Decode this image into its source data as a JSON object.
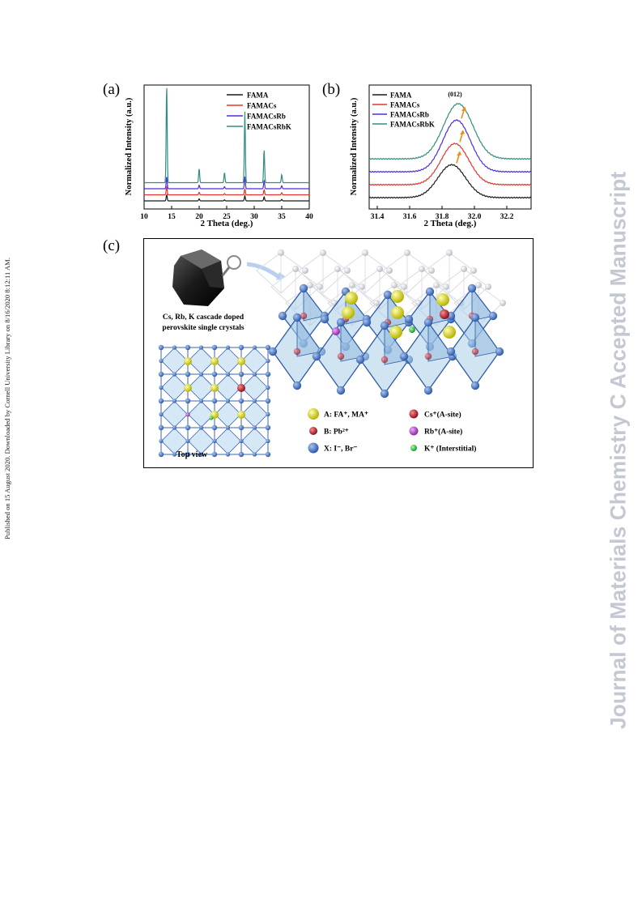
{
  "watermark": "Journal of Materials Chemistry C Accepted Manuscript",
  "side_note": "Published on 15 August 2020. Downloaded by Cornell University Library on 8/16/2020 8:12:11 AM.",
  "panels": {
    "a": "(a)",
    "b": "(b)",
    "c": "(c)"
  },
  "colors": {
    "FAMA": "#1a1a1a",
    "FAMACs": "#e8332e",
    "FAMACsRb": "#4a2ee0",
    "FAMACsRbK": "#2f8f7f"
  },
  "chart_data": [
    {
      "type": "line",
      "xlabel": "2 Theta (deg.)",
      "ylabel": "Normalized Intensity (a.u.)",
      "xlim": [
        10,
        40
      ],
      "xticks": [
        "10",
        "15",
        "20",
        "25",
        "30",
        "35",
        "40"
      ],
      "legend": "top-right",
      "peaks": [
        14.1,
        20.0,
        24.6,
        28.3,
        31.8,
        35.0
      ],
      "series": [
        {
          "name": "FAMA",
          "offset": 0,
          "heights": [
            0.06,
            0.02,
            0.01,
            0.05,
            0.04,
            0.015
          ]
        },
        {
          "name": "FAMACs",
          "offset": 0.06,
          "heights": [
            0.08,
            0.025,
            0.012,
            0.06,
            0.05,
            0.02
          ]
        },
        {
          "name": "FAMACsRb",
          "offset": 0.12,
          "heights": [
            0.12,
            0.035,
            0.02,
            0.12,
            0.08,
            0.03
          ]
        },
        {
          "name": "FAMACsRbK",
          "offset": 0.18,
          "heights": [
            0.97,
            0.14,
            0.1,
            0.7,
            0.33,
            0.08
          ]
        }
      ]
    },
    {
      "type": "line",
      "xlabel": "2 Theta (deg.)",
      "ylabel": "Normalized Intensity (a.u.)",
      "xlim": [
        31.35,
        32.35
      ],
      "xticks": [
        "31.4",
        "31.6",
        "31.8",
        "32.0",
        "32.2"
      ],
      "annotation": "(012)",
      "legend": "top-left",
      "series": [
        {
          "name": "FAMA",
          "offset": 0.0,
          "center": 31.86,
          "height": 0.28,
          "width": 0.085
        },
        {
          "name": "FAMACs",
          "offset": 0.11,
          "center": 31.88,
          "height": 0.35,
          "width": 0.085
        },
        {
          "name": "FAMACsRb",
          "offset": 0.22,
          "center": 31.89,
          "height": 0.44,
          "width": 0.085
        },
        {
          "name": "FAMACsRbK",
          "offset": 0.33,
          "center": 31.9,
          "height": 0.47,
          "width": 0.09
        }
      ]
    }
  ],
  "crystal_caption": [
    "Cs, Rb, K cascade doped",
    "perovskite single crystals"
  ],
  "top_view_label": "Top view",
  "legend_c": [
    {
      "label": "A: FA⁺, MA⁺",
      "color": "#d6d62a"
    },
    {
      "label": "Cs⁺(A-site)",
      "color": "#c21f3a"
    },
    {
      "label": "B: Pb²⁺",
      "color": "#a83030"
    },
    {
      "label": "Rb⁺(A-site)",
      "color": "#b24ac8"
    },
    {
      "label": "X: I⁻, Br⁻",
      "color": "#4d7ac4"
    },
    {
      "label": "K⁺ (Interstitial)",
      "color": "#2fbf3a"
    }
  ]
}
